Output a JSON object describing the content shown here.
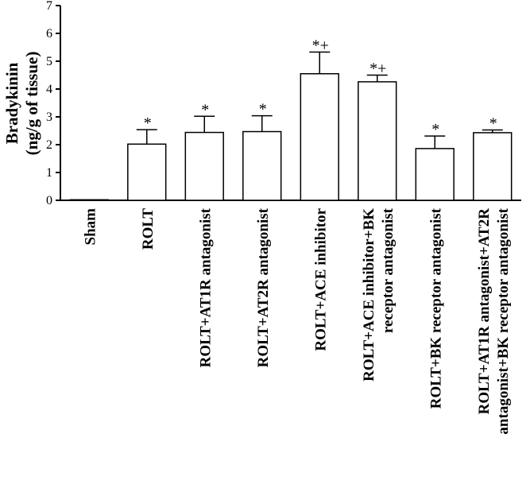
{
  "chart_data": {
    "type": "bar",
    "ylabel_lines": [
      "Bradykinin",
      "(ng/g of tissue)"
    ],
    "ylim": [
      0,
      7
    ],
    "yticks": [
      0,
      1,
      2,
      3,
      4,
      5,
      6,
      7
    ],
    "grid": false,
    "legend": "none",
    "categories": [
      [
        "Sham"
      ],
      [
        "ROLT"
      ],
      [
        "ROLT+AT1R antagonist"
      ],
      [
        "ROLT+AT2R antagonist"
      ],
      [
        "ROLT+ACE inhibitor"
      ],
      [
        "ROLT+ACE inhibitor+BK",
        "receptor antagonist"
      ],
      [
        "ROLT+BK receptor antagonist"
      ],
      [
        "ROLT+AT1R antagonist+AT2R",
        "antagonist+BK receptor antagonist"
      ]
    ],
    "values": [
      0.02,
      2.02,
      2.44,
      2.47,
      4.55,
      4.26,
      1.86,
      2.43
    ],
    "errors": [
      0,
      0.52,
      0.58,
      0.57,
      0.78,
      0.24,
      0.45,
      0.1
    ],
    "significance": [
      "",
      "*",
      "*",
      "*",
      "*+",
      "*+",
      "*",
      "*"
    ]
  }
}
